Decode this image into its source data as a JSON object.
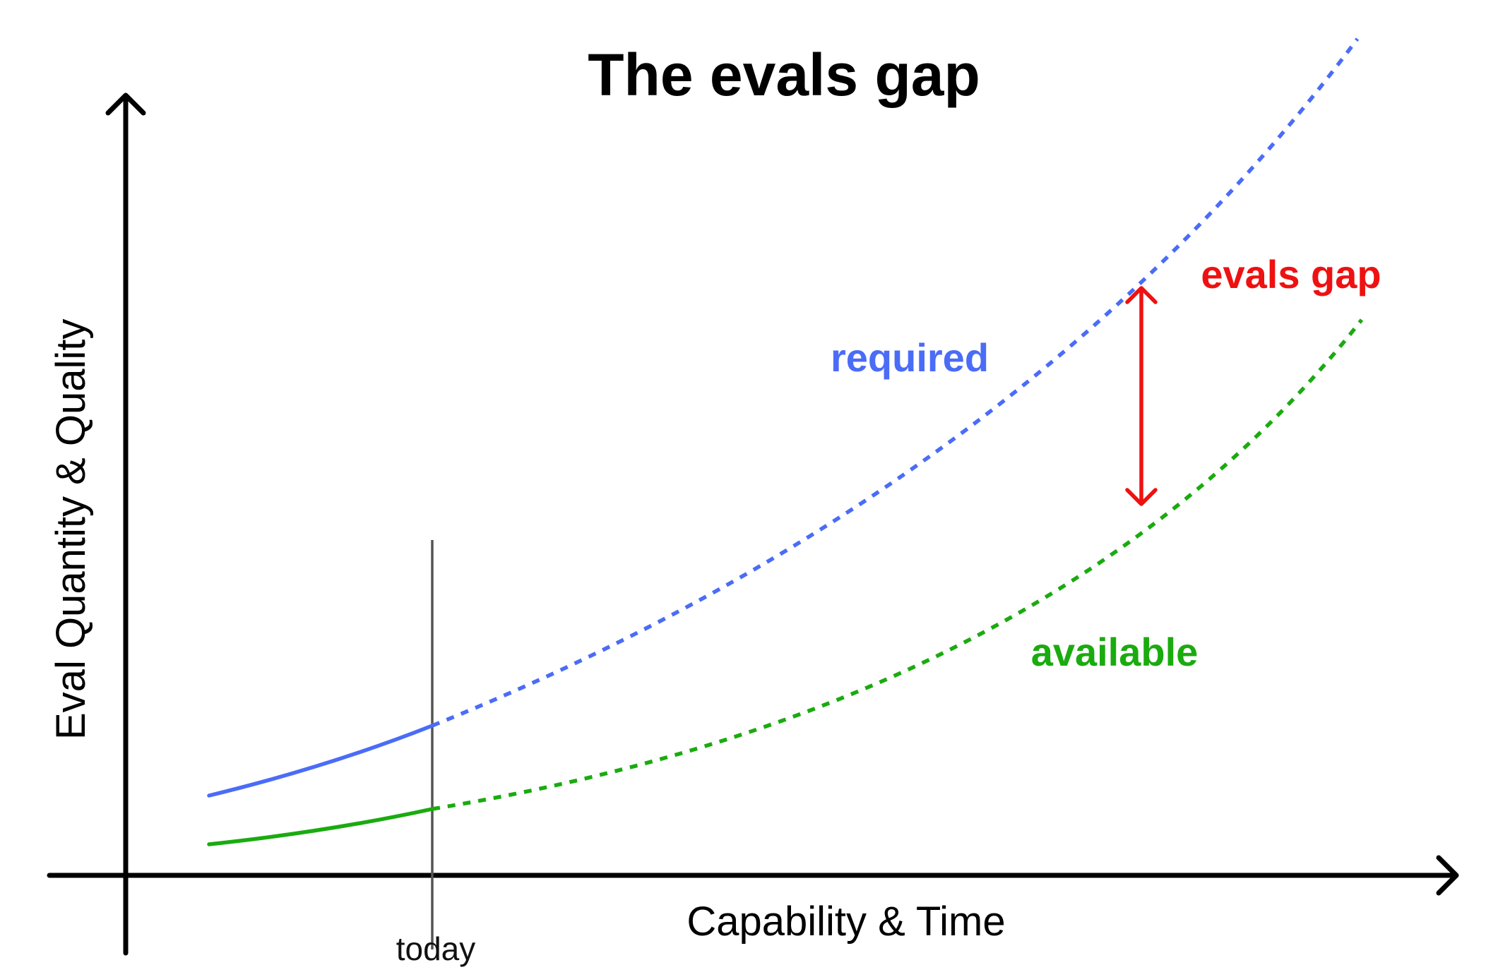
{
  "title": "The evals gap",
  "x_axis_label": "Capability & Time",
  "y_axis_label": "Eval Quantity & Quality",
  "today_marker_label": "today",
  "gap_label": "evals gap",
  "colors": {
    "required": "#4a6cf7",
    "available": "#1aab0f",
    "gap": "#ee1111",
    "axis": "#000000",
    "today_line": "#555555"
  },
  "series": [
    {
      "key": "required",
      "label": "required",
      "shape": "convex-rising",
      "solid_until": "today",
      "dashed_after": "today"
    },
    {
      "key": "available",
      "label": "available",
      "shape": "convex-rising",
      "solid_until": "today",
      "dashed_after": "today"
    }
  ],
  "icons": {
    "x_axis_arrow": "arrowhead-right-icon",
    "y_axis_arrow": "arrowhead-up-icon",
    "gap_arrow": "double-headed-arrow-icon"
  }
}
